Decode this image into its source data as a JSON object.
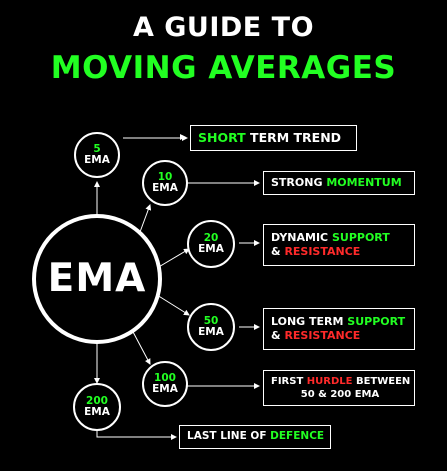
{
  "title": {
    "line1": "A GUIDE TO",
    "line2": "MOVING AVERAGES"
  },
  "colors": {
    "background": "#000000",
    "accent": "#22ff22",
    "highlight": "#ff2a2a",
    "text": "#ffffff"
  },
  "center": {
    "label": "EMA"
  },
  "nodes": [
    {
      "number": "5",
      "label": "EMA"
    },
    {
      "number": "10",
      "label": "EMA"
    },
    {
      "number": "20",
      "label": "EMA"
    },
    {
      "number": "50",
      "label": "EMA"
    },
    {
      "number": "100",
      "label": "EMA"
    },
    {
      "number": "200",
      "label": "EMA"
    }
  ],
  "descriptions": [
    {
      "parts": [
        "SHORT",
        " TERM TREND"
      ]
    },
    {
      "parts": [
        "STRONG ",
        "MOMENTUM"
      ]
    },
    {
      "line1": [
        "DYNAMIC ",
        "SUPPORT"
      ],
      "line2": [
        "& ",
        "RESISTANCE"
      ]
    },
    {
      "line1": [
        "LONG TERM ",
        "SUPPORT"
      ],
      "line2": [
        "& ",
        "RESISTANCE"
      ]
    },
    {
      "line1": [
        "FIRST ",
        "HURDLE",
        " BETWEEN"
      ],
      "line2": [
        "50 & 200 EMA"
      ]
    },
    {
      "parts": [
        "LAST LINE OF ",
        "DEFENCE"
      ]
    }
  ]
}
